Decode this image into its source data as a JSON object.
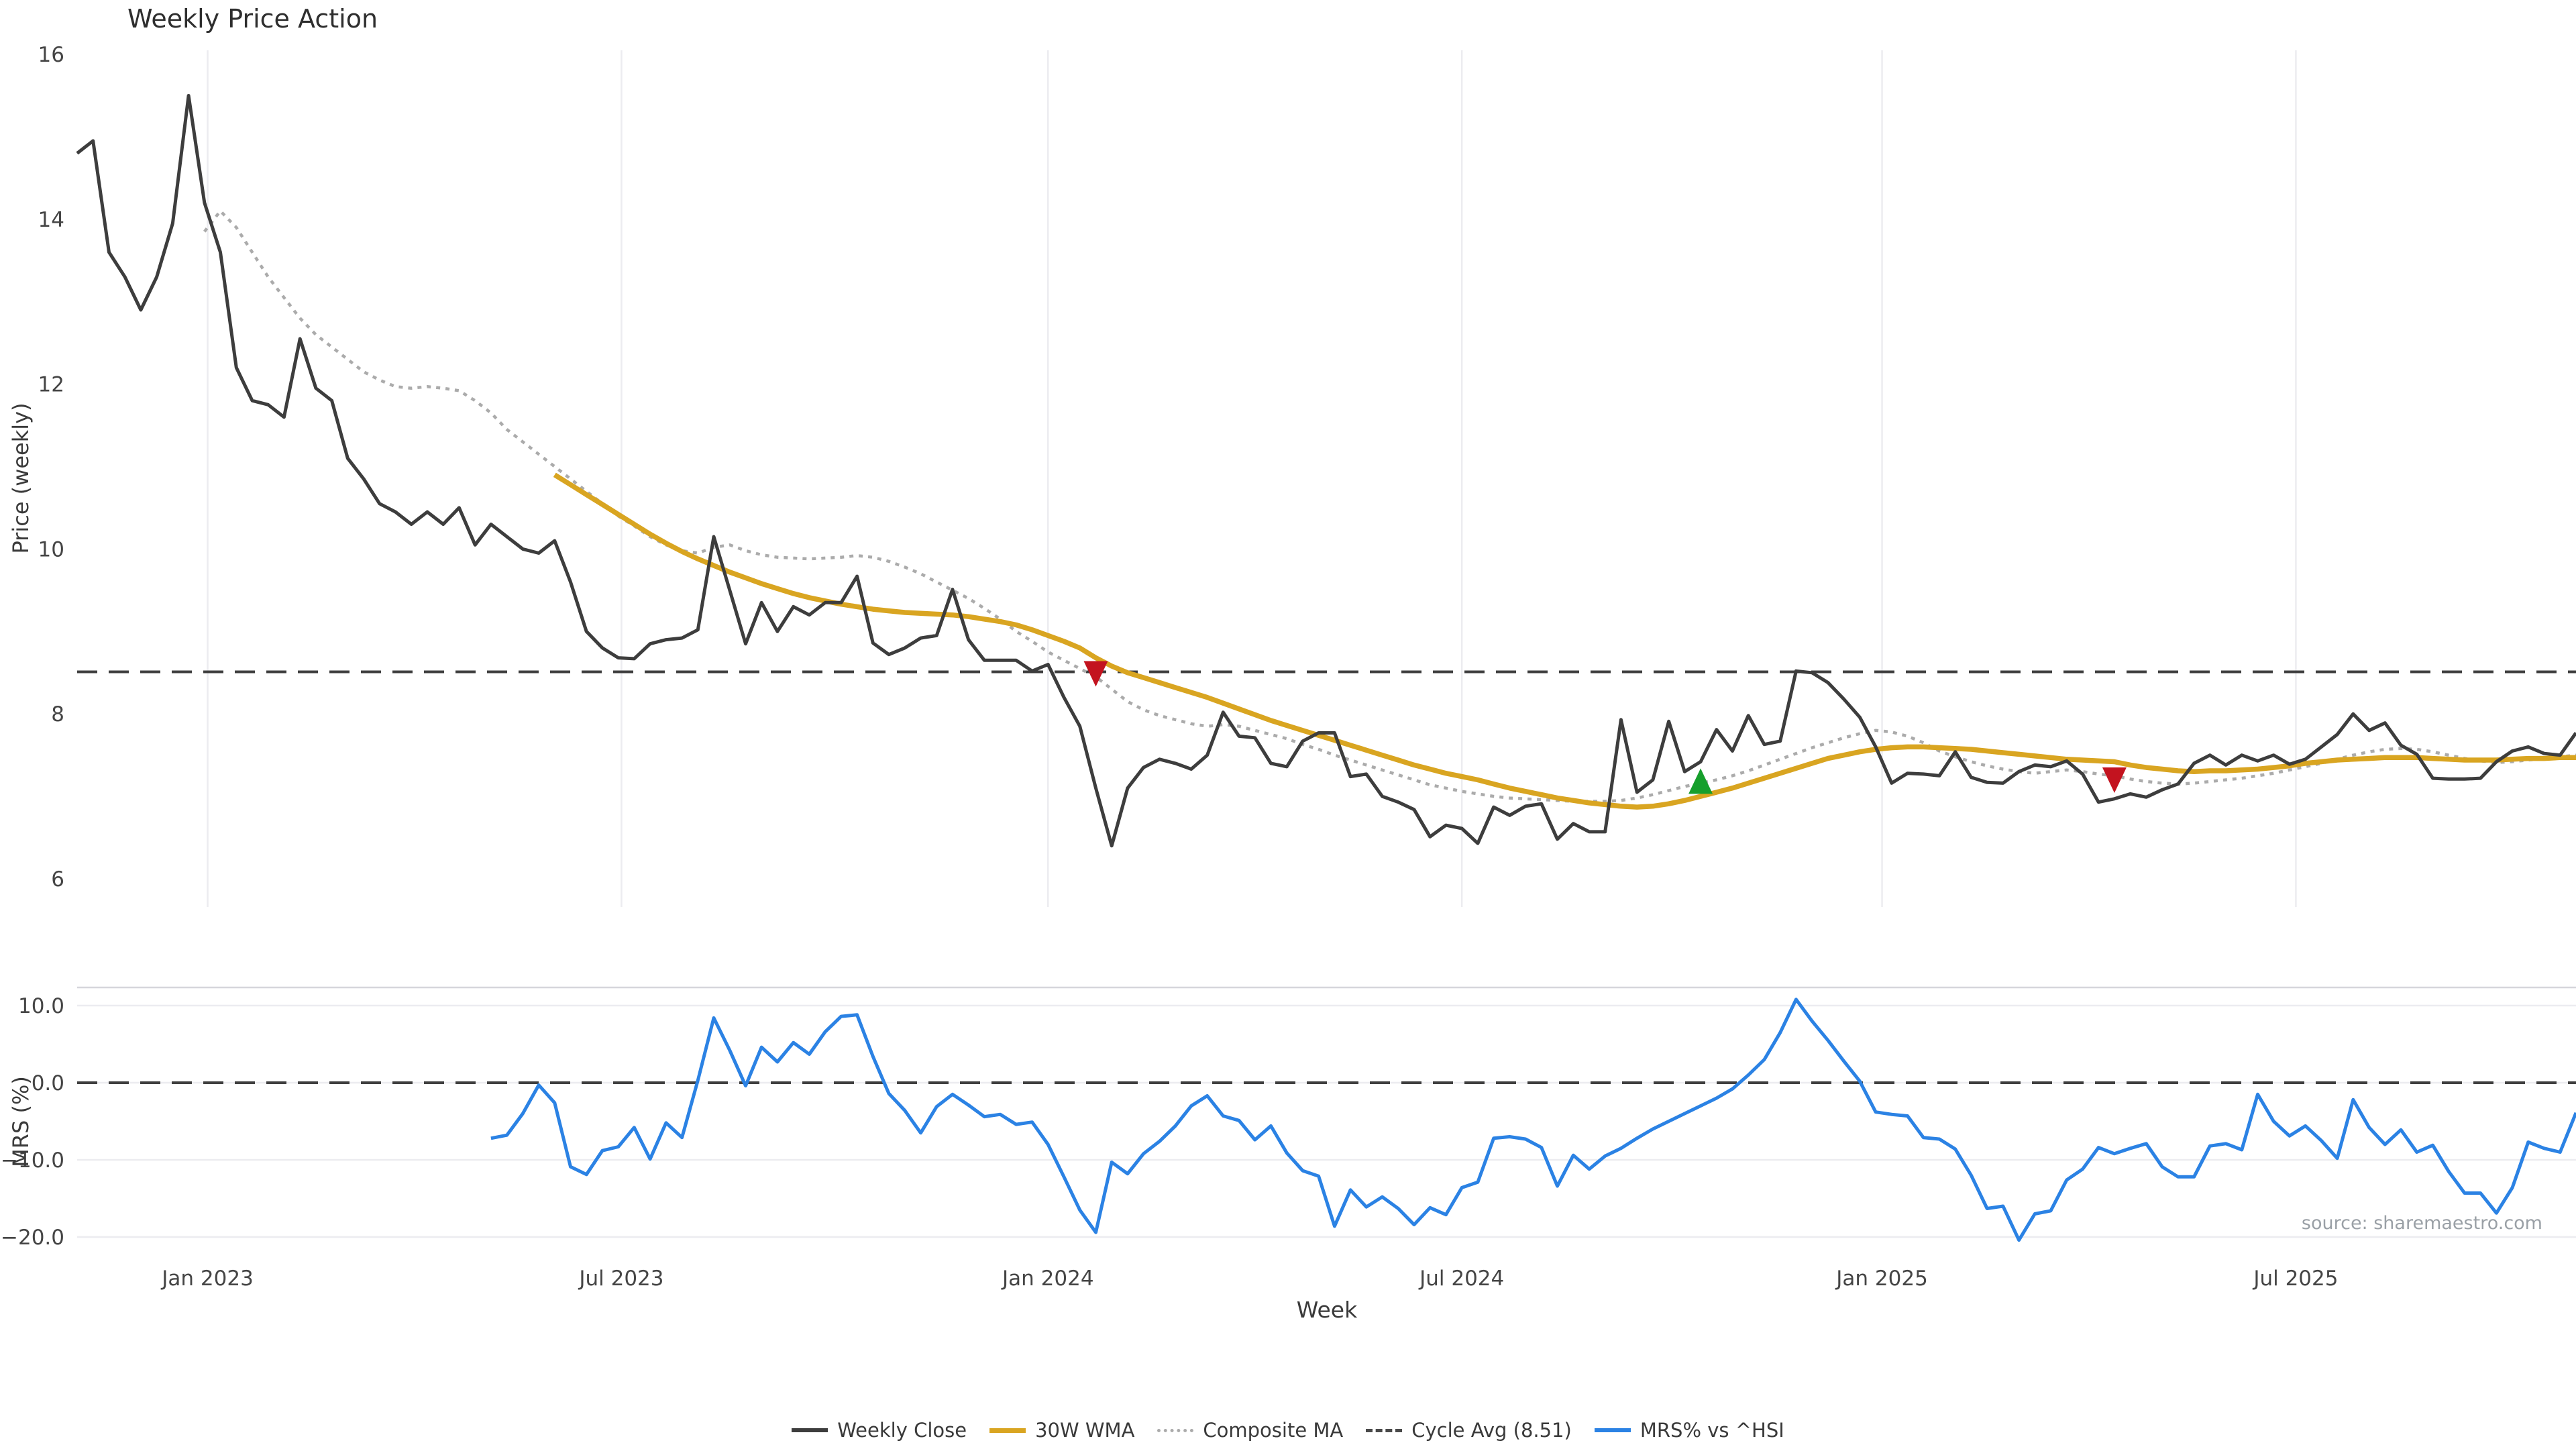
{
  "title": "Weekly Price Action",
  "source": "source: sharemaestro.com",
  "colors": {
    "weekly_close": "#3d3d3d",
    "wma_30w": "#d9a521",
    "composite_ma": "#ababab",
    "cycle_avg": "#3f3f3f",
    "mrs": "#2b82e4",
    "grid": "#ececf0",
    "spine": "#d6d6db",
    "sell_marker": "#c3131f",
    "buy_marker": "#169f2c",
    "tick_text": "#454545"
  },
  "legend": {
    "items": [
      {
        "label": "Weekly Close",
        "style": "solid",
        "color": "#3d3d3d"
      },
      {
        "label": "30W WMA",
        "style": "solid",
        "color": "#d9a521"
      },
      {
        "label": "Composite MA",
        "style": "dotted",
        "color": "#ababab"
      },
      {
        "label": "Cycle Avg (8.51)",
        "style": "dashed",
        "color": "#4a4a4a"
      },
      {
        "label": "MRS% vs ^HSI",
        "style": "solid",
        "color": "#2b82e4"
      }
    ]
  },
  "chart_data": [
    {
      "type": "line",
      "panel": "price",
      "title": "Weekly Price Action",
      "xlabel": "Week",
      "ylabel": "Price (weekly)",
      "ylim": [
        5.66,
        16.05
      ],
      "yticks": [
        16,
        14,
        12,
        10,
        8,
        6
      ],
      "ytick_labels": [
        "16",
        "14",
        "12",
        "10",
        "8",
        "6"
      ],
      "grid": "vertical-only",
      "weeks_total": 158,
      "x_domain_weeks": [
        0,
        157
      ],
      "xticks": [
        {
          "week": 8.2,
          "label": "Jan 2023"
        },
        {
          "week": 34.2,
          "label": "Jul 2023"
        },
        {
          "week": 61.0,
          "label": "Jan 2024"
        },
        {
          "week": 87.0,
          "label": "Jul 2024"
        },
        {
          "week": 113.4,
          "label": "Jan 2025"
        },
        {
          "week": 139.4,
          "label": "Jul 2025"
        }
      ],
      "cycle_avg_value": 8.51,
      "series": [
        {
          "name": "Weekly Close",
          "start_week": 0,
          "values": [
            14.8,
            14.95,
            13.6,
            13.3,
            12.9,
            13.3,
            13.95,
            15.5,
            14.2,
            13.6,
            12.2,
            11.8,
            11.75,
            11.6,
            12.55,
            11.95,
            11.8,
            11.1,
            10.85,
            10.55,
            10.45,
            10.3,
            10.45,
            10.3,
            10.5,
            10.05,
            10.3,
            10.15,
            10.0,
            9.95,
            10.1,
            9.6,
            9.0,
            8.8,
            8.68,
            8.67,
            8.85,
            8.9,
            8.92,
            9.02,
            10.15,
            9.5,
            8.85,
            9.35,
            9.0,
            9.3,
            9.2,
            9.35,
            9.35,
            9.67,
            8.86,
            8.72,
            8.8,
            8.92,
            8.95,
            9.51,
            8.9,
            8.65,
            8.65,
            8.65,
            8.52,
            8.6,
            8.2,
            7.85,
            7.1,
            6.4,
            7.1,
            7.35,
            7.45,
            7.4,
            7.33,
            7.5,
            8.02,
            7.73,
            7.71,
            7.4,
            7.36,
            7.67,
            7.77,
            7.77,
            7.24,
            7.27,
            7.0,
            6.93,
            6.84,
            6.51,
            6.65,
            6.61,
            6.43,
            6.87,
            6.77,
            6.88,
            6.91,
            6.48,
            6.67,
            6.57,
            6.57,
            7.93,
            7.05,
            7.2,
            7.91,
            7.3,
            7.42,
            7.81,
            7.55,
            7.98,
            7.63,
            7.67,
            8.52,
            8.5,
            8.38,
            8.18,
            7.96,
            7.6,
            7.16,
            7.28,
            7.27,
            7.25,
            7.54,
            7.23,
            7.17,
            7.16,
            7.3,
            7.38,
            7.36,
            7.43,
            7.27,
            6.93,
            6.97,
            7.03,
            6.99,
            7.08,
            7.15,
            7.4,
            7.5,
            7.38,
            7.5,
            7.43,
            7.5,
            7.39,
            7.45,
            7.6,
            7.75,
            8.0,
            7.8,
            7.89,
            7.62,
            7.51,
            7.22,
            7.21,
            7.21,
            7.22,
            7.42,
            7.55,
            7.6,
            7.52,
            7.5,
            7.77
          ]
        },
        {
          "name": "Composite MA",
          "start_week": 8,
          "values": [
            13.85,
            14.1,
            13.9,
            13.6,
            13.3,
            13.05,
            12.8,
            12.6,
            12.45,
            12.3,
            12.15,
            12.05,
            11.97,
            11.95,
            11.97,
            11.95,
            11.92,
            11.8,
            11.65,
            11.45,
            11.3,
            11.15,
            11.0,
            10.85,
            10.7,
            10.55,
            10.4,
            10.28,
            10.15,
            10.05,
            9.98,
            9.95,
            10.02,
            10.05,
            9.98,
            9.93,
            9.9,
            9.89,
            9.88,
            9.89,
            9.9,
            9.92,
            9.9,
            9.85,
            9.78,
            9.7,
            9.6,
            9.5,
            9.4,
            9.28,
            9.15,
            9.0,
            8.88,
            8.75,
            8.65,
            8.55,
            8.45,
            8.3,
            8.15,
            8.05,
            7.98,
            7.93,
            7.88,
            7.85,
            7.87,
            7.85,
            7.8,
            7.75,
            7.7,
            7.63,
            7.57,
            7.5,
            7.44,
            7.38,
            7.32,
            7.26,
            7.2,
            7.14,
            7.1,
            7.06,
            7.03,
            7.0,
            6.98,
            6.97,
            6.96,
            6.95,
            6.94,
            6.94,
            6.94,
            6.95,
            6.98,
            7.02,
            7.07,
            7.12,
            7.16,
            7.2,
            7.25,
            7.31,
            7.38,
            7.45,
            7.52,
            7.59,
            7.65,
            7.71,
            7.76,
            7.8,
            7.78,
            7.73,
            7.65,
            7.55,
            7.48,
            7.42,
            7.37,
            7.33,
            7.3,
            7.28,
            7.3,
            7.32,
            7.3,
            7.27,
            7.25,
            7.21,
            7.18,
            7.16,
            7.15,
            7.16,
            7.18,
            7.2,
            7.22,
            7.25,
            7.28,
            7.32,
            7.36,
            7.4,
            7.45,
            7.5,
            7.54,
            7.57,
            7.58,
            7.57,
            7.54,
            7.5,
            7.46,
            7.43,
            7.41,
            7.42,
            7.44,
            7.46,
            7.48,
            7.5
          ]
        },
        {
          "name": "30W WMA",
          "start_week": 30,
          "values": [
            10.9,
            10.78,
            10.66,
            10.54,
            10.42,
            10.3,
            10.18,
            10.07,
            9.97,
            9.88,
            9.8,
            9.72,
            9.65,
            9.58,
            9.52,
            9.46,
            9.41,
            9.37,
            9.33,
            9.3,
            9.27,
            9.25,
            9.23,
            9.22,
            9.21,
            9.2,
            9.18,
            9.15,
            9.12,
            9.08,
            9.02,
            8.95,
            8.88,
            8.8,
            8.68,
            8.58,
            8.5,
            8.44,
            8.38,
            8.32,
            8.26,
            8.2,
            8.13,
            8.06,
            7.99,
            7.92,
            7.86,
            7.8,
            7.74,
            7.68,
            7.62,
            7.56,
            7.5,
            7.44,
            7.38,
            7.33,
            7.28,
            7.24,
            7.2,
            7.15,
            7.1,
            7.06,
            7.02,
            6.98,
            6.95,
            6.92,
            6.9,
            6.88,
            6.87,
            6.88,
            6.91,
            6.95,
            7.0,
            7.05,
            7.1,
            7.16,
            7.22,
            7.28,
            7.34,
            7.4,
            7.46,
            7.5,
            7.54,
            7.57,
            7.59,
            7.6,
            7.6,
            7.59,
            7.58,
            7.57,
            7.55,
            7.53,
            7.51,
            7.49,
            7.47,
            7.45,
            7.44,
            7.43,
            7.42,
            7.38,
            7.35,
            7.33,
            7.31,
            7.3,
            7.31,
            7.31,
            7.32,
            7.33,
            7.35,
            7.37,
            7.4,
            7.42,
            7.44,
            7.45,
            7.46,
            7.47,
            7.47,
            7.47,
            7.46,
            7.45,
            7.44,
            7.44,
            7.44,
            7.45,
            7.46,
            7.46,
            7.47,
            7.47
          ]
        }
      ],
      "markers": [
        {
          "shape": "triangle-down",
          "meaning": "sell-signal",
          "week": 64,
          "value": 8.51,
          "color": "#c3131f"
        },
        {
          "shape": "triangle-up",
          "meaning": "buy-signal",
          "week": 102,
          "value": 7.16,
          "color": "#169f2c"
        },
        {
          "shape": "triangle-down",
          "meaning": "sell-signal",
          "week": 128,
          "value": 7.22,
          "color": "#c3131f"
        }
      ]
    },
    {
      "type": "line",
      "panel": "mrs",
      "xlabel": "Week",
      "ylabel": "MRS (%)",
      "ylim": [
        -22.7,
        12.3
      ],
      "yticks": [
        10,
        0,
        -10,
        -20
      ],
      "ytick_labels": [
        "10.0",
        "0.0",
        "−10.0",
        "−20.0"
      ],
      "grid": "horizontal-only",
      "zero_line_dashed": true,
      "series": [
        {
          "name": "MRS% vs ^HSI",
          "start_week": 26,
          "values": [
            -7.2,
            -6.8,
            -4.0,
            -0.3,
            -2.6,
            -10.9,
            -11.9,
            -8.8,
            -8.3,
            -5.8,
            -9.9,
            -5.2,
            -7.1,
            0.3,
            8.4,
            4.2,
            -0.4,
            4.6,
            2.7,
            5.2,
            3.7,
            6.6,
            8.6,
            8.8,
            3.4,
            -1.4,
            -3.6,
            -6.5,
            -3.1,
            -1.5,
            -2.9,
            -4.4,
            -4.1,
            -5.4,
            -5.1,
            -8.0,
            -12.2,
            -16.5,
            -19.4,
            -10.3,
            -11.8,
            -9.2,
            -7.6,
            -5.6,
            -3.0,
            -1.7,
            -4.3,
            -4.9,
            -7.4,
            -5.6,
            -9.1,
            -11.4,
            -12.1,
            -18.6,
            -13.9,
            -16.1,
            -14.8,
            -16.3,
            -18.4,
            -16.2,
            -17.1,
            -13.6,
            -12.9,
            -7.2,
            -7.0,
            -7.3,
            -8.4,
            -13.4,
            -9.4,
            -11.2,
            -9.5,
            -8.5,
            -7.2,
            -6.0,
            -5.0,
            -4.0,
            -3.0,
            -2.0,
            -0.8,
            1.0,
            3.0,
            6.5,
            10.8,
            8.0,
            5.5,
            2.8,
            0.2,
            -3.8,
            -4.1,
            -4.3,
            -7.1,
            -7.3,
            -8.6,
            -12.0,
            -16.3,
            -16.0,
            -20.4,
            -17.0,
            -16.6,
            -12.6,
            -11.2,
            -8.4,
            -9.2,
            -8.5,
            -7.9,
            -10.9,
            -12.2,
            -12.2,
            -8.2,
            -7.9,
            -8.7,
            -1.5,
            -5.0,
            -6.9,
            -5.6,
            -7.5,
            -9.8,
            -2.2,
            -5.8,
            -8.0,
            -6.1,
            -9.0,
            -8.1,
            -11.5,
            -14.3,
            -14.3,
            -16.9,
            -13.6,
            -7.7,
            -8.5,
            -9.0,
            -3.9
          ]
        }
      ]
    }
  ]
}
